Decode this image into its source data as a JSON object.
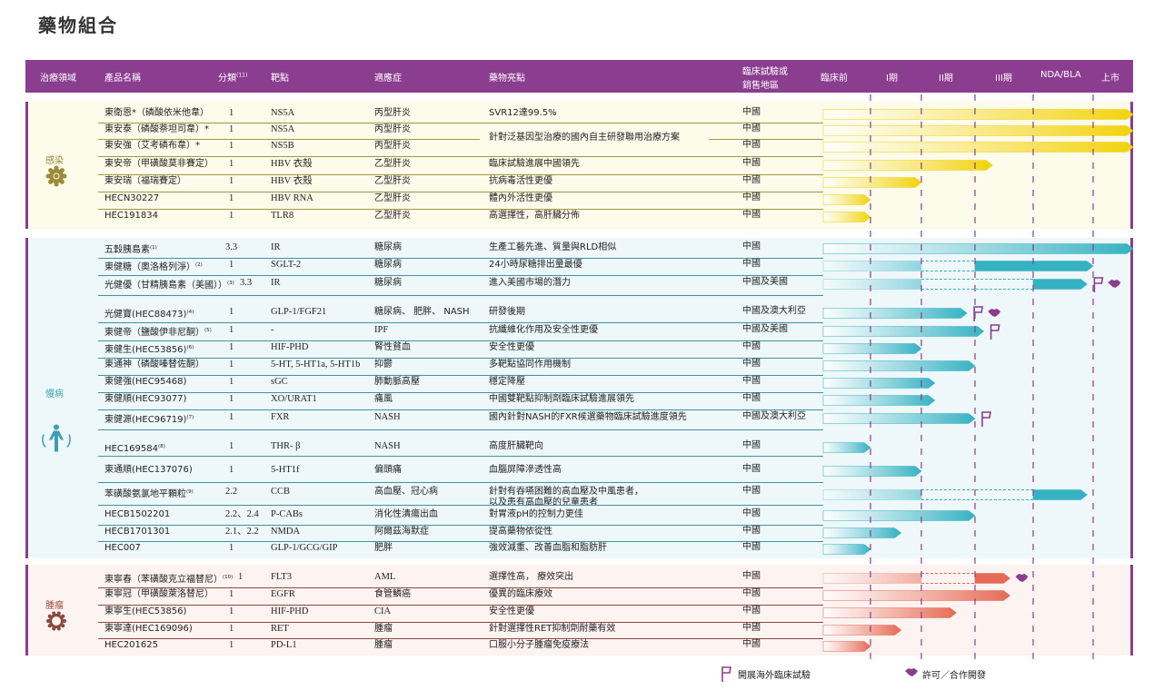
{
  "title": "藥物組合",
  "header": {
    "area": "治療領域",
    "name": "產品名稱",
    "class": "分類",
    "class_note": "(11)",
    "target": "靶點",
    "indication": "適應症",
    "highlight": "藥物亮點",
    "region_1": "臨床試驗或",
    "region_2": "銷售地區",
    "stages": [
      "臨床前",
      "I期",
      "II期",
      "III期",
      "NDA/BLA",
      "上市"
    ]
  },
  "colors": {
    "header": "#8b3d8f",
    "infection": "#f2d20c",
    "chronic": "#35b2c2",
    "oncology": "#e66a55",
    "icon": "#8b3d8f"
  },
  "sections": [
    {
      "key": "infection",
      "label": "感染",
      "icon": "gear-virus-icon",
      "rows": [
        {
          "name": "東衛恩*（磷酸依米他韋）",
          "class": "1",
          "target": "NS5A",
          "indication": "丙型肝炎",
          "highlight": "SVR12達99.5%",
          "region": "中國",
          "end": 6
        },
        {
          "name": "東安泰（磷酸萘坦司韋）*",
          "class": "1",
          "target": "NS5A",
          "indication": "丙型肝炎",
          "highlight": "針對泛基因型治療的國內自主研發聯用治療方案",
          "span": 2,
          "region": "中國",
          "end": 6
        },
        {
          "name": "東安強（艾考磷布韋）*",
          "class": "1",
          "target": "NS5B",
          "indication": "丙型肝炎",
          "region": "中國",
          "end": 6
        },
        {
          "name": "東安帝（甲磺酸莫非賽定）",
          "class": "1",
          "target": "HBV 衣殼",
          "indication": "乙型肝炎",
          "highlight": "臨床試驗進展中國領先",
          "region": "中國",
          "end": 3.3
        },
        {
          "name": "東安瑞（福瑞賽定）",
          "class": "1",
          "target": "HBV 衣殼",
          "indication": "乙型肝炎",
          "highlight": "抗病毒活性更優",
          "region": "中國",
          "end": 2
        },
        {
          "name": "HECN30227",
          "class": "1",
          "target": "HBV RNA",
          "indication": "乙型肝炎",
          "highlight": "體內外活性更優",
          "region": "中國",
          "end": 1
        },
        {
          "name": "HEC191834",
          "class": "1",
          "target": "TLR8",
          "indication": "乙型肝炎",
          "highlight": "高選擇性，高肝臟分佈",
          "region": "中國",
          "end": 1
        }
      ]
    },
    {
      "key": "chronic",
      "label": "慢病",
      "icon": "human-body-icon",
      "rows": [
        {
          "name": "五穀胰島素",
          "note": "(1)",
          "class": "3.3",
          "target": "IR",
          "indication": "糖尿病",
          "highlight": "生產工藝先進、質量與RLD相似",
          "region": "中國",
          "end": 6
        },
        {
          "name": "東健糖（奧洛格列淨）",
          "note": "(2)",
          "class": "1",
          "target": "SGLT-2",
          "indication": "糖尿病",
          "highlight": "24小時尿糖排出量最優",
          "region": "中國",
          "end": 5,
          "gap": [
            2,
            3
          ]
        },
        {
          "name": "光健優（甘精胰島素（美國））",
          "note": "(3)",
          "class": "3.3",
          "target": "IR",
          "indication": "糖尿病",
          "highlight": "進入美國市場的潛力",
          "region": "中國及美國",
          "end": 4.9,
          "gap": [
            2,
            4
          ],
          "flag": true,
          "license": true
        },
        {
          "name": "光健寶(HEC88473)",
          "note": "(4)",
          "class": "1",
          "target": "GLP-1/FGF21",
          "indication": "糖尿病、 肥胖、 NASH",
          "highlight": "研發後期",
          "region": "中國及澳大利亞",
          "end": 2.85,
          "flag": true,
          "license": true
        },
        {
          "name": "東健帝（鹽酸伊非尼酮）",
          "note": "(5)",
          "class": "1",
          "target": "-",
          "indication": "IPF",
          "highlight": "抗纖維化作用及安全性更優",
          "region": "中國及美國",
          "end": 3.15,
          "flag": true
        },
        {
          "name": "東健生(HEC53856)",
          "note": "(6)",
          "class": "1",
          "target": "HIF-PHD",
          "indication": "腎性貧血",
          "highlight": "安全性更優",
          "region": "中國",
          "end": 2
        },
        {
          "name": "東通神（磷酸嗪替佐酮）",
          "class": "1",
          "target": "5-HT, 5-HT1a, 5-HT1b",
          "indication": "抑鬱",
          "highlight": "多靶點協同作用機制",
          "region": "中國",
          "end": 3
        },
        {
          "name": "東健強(HEC95468)",
          "class": "1",
          "target": "sGC",
          "indication": "肺動脈高壓",
          "highlight": "穩定降壓",
          "region": "中國",
          "end": 2.25
        },
        {
          "name": "東健順(HEC93077)",
          "class": "1",
          "target": "XO/URAT1",
          "indication": "痛風",
          "highlight": "中國雙靶點抑制劑臨床試驗進展領先",
          "region": "中國",
          "end": 2.25
        },
        {
          "name": "東健源(HEC96719)",
          "note": "(7)",
          "class": "1",
          "target": "FXR",
          "indication": "NASH",
          "highlight": "國內針對NASH的FXR候選藥物臨床試驗進度領先",
          "region": "中國及澳大利亞",
          "end": 3,
          "flag": true
        },
        {
          "name": "HEC169584",
          "note": "(8)",
          "class": "1",
          "target": "THR- β",
          "indication": "NASH",
          "highlight": "高度肝臟靶向",
          "region": "中國",
          "end": 1
        },
        {
          "name": "東通順(HEC137076)",
          "class": "1",
          "target": "5-HT1f",
          "indication": "偏頭痛",
          "highlight": "血腦屏障滲透性高",
          "region": "中國",
          "end": 2
        },
        {
          "name": "苯磺酸氨氯地平顆粒",
          "note": "(9)",
          "class": "2.2",
          "target": "CCB",
          "indication": "高血壓、冠心病",
          "highlight": "針對有吞嚥困難的高血壓及中風患者，",
          "highlight2": "以及患有高血壓的兒童患者",
          "region": "中國",
          "end": 4.9,
          "gap": [
            2,
            4
          ]
        },
        {
          "name": "HECB1502201",
          "class": "2.2、2.4",
          "target": "P-CABs",
          "indication": "消化性潰瘍出血",
          "highlight": "對胃液pH的控制力更佳",
          "region": "中國",
          "end": 3
        },
        {
          "name": "HECB1701301",
          "class": "2.1、2.2",
          "target": "NMDA",
          "indication": "阿爾茲海默症",
          "highlight": "提高藥物依從性",
          "region": "中國",
          "end": 1.6
        },
        {
          "name": "HEC007",
          "class": "1",
          "target": "GLP-1/GCG/GIP",
          "indication": "肥胖",
          "highlight": "強效減重、改善血脂和脂肪肝",
          "region": "中國",
          "end": 1
        }
      ]
    },
    {
      "key": "oncology",
      "label": "腫瘤",
      "icon": "tumor-cell-icon",
      "rows": [
        {
          "name": "東寧春（苯磺酸克立福替尼）",
          "note": "(10)",
          "class": "1",
          "target": "FLT3",
          "indication": "AML",
          "highlight": "選擇性高， 療效突出",
          "region": "中國",
          "end": 3.6,
          "gap": [
            2,
            3
          ],
          "license": true
        },
        {
          "name": "東寧冠（甲磺酸萊洛替尼）",
          "class": "1",
          "target": "EGFR",
          "indication": "食管鱗癌",
          "highlight": "優異的臨床療效",
          "region": "中國",
          "end": 3.6
        },
        {
          "name": "東寧生(HEC53856)",
          "class": "1",
          "target": "HIF-PHD",
          "indication": "CIA",
          "highlight": "安全性更優",
          "region": "中國",
          "end": 2.65
        },
        {
          "name": "東寧達(HEC169096)",
          "class": "1",
          "target": "RET",
          "indication": "腫瘤",
          "highlight": "針對選擇性RET抑制劑耐藥有效",
          "region": "中國",
          "end": 1.6
        },
        {
          "name": "HEC201625",
          "class": "1",
          "target": "PD-L1",
          "indication": "腫瘤",
          "highlight": "口服小分子腫瘤免疫療法",
          "region": "中國",
          "end": 1
        }
      ]
    }
  ],
  "legend": {
    "flag": "開展海外臨床試驗",
    "license": "許可／合作開發"
  }
}
